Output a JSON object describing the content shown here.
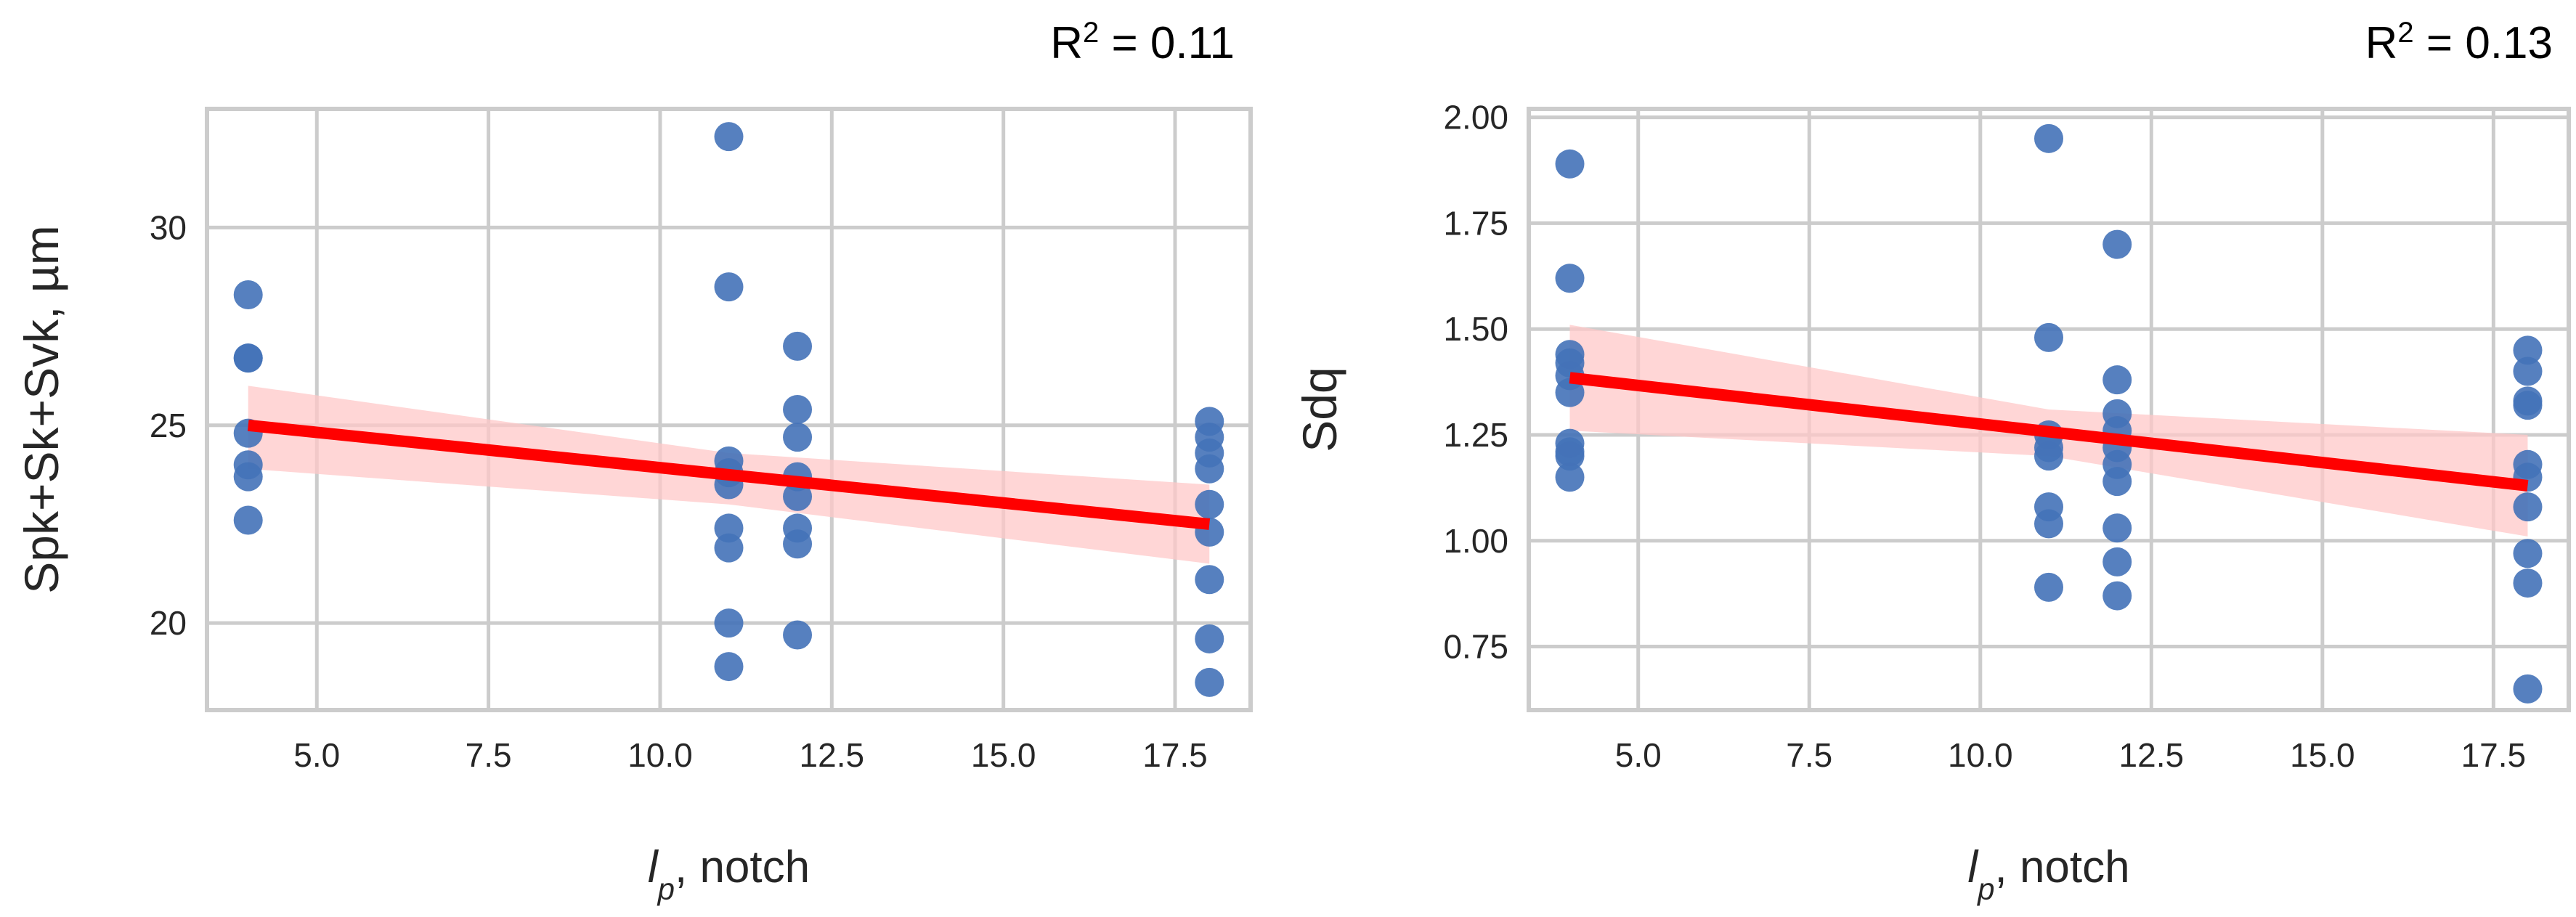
{
  "chart_data": [
    {
      "type": "scatter",
      "annotation": {
        "base": "R",
        "sup": "2",
        "rest": " = 0.11"
      },
      "xlabel": {
        "italic": "l",
        "sub": "p",
        "rest": ", notch"
      },
      "ylabel": "Spk+Sk+Svk, µm",
      "xlim": [
        3.4,
        18.6
      ],
      "ylim": [
        17.8,
        33.0
      ],
      "xticks": [
        5.0,
        7.5,
        10.0,
        12.5,
        15.0,
        17.5
      ],
      "xtick_labels": [
        "5.0",
        "7.5",
        "10.0",
        "12.5",
        "15.0",
        "17.5"
      ],
      "yticks": [
        20,
        25,
        30
      ],
      "ytick_labels": [
        "20",
        "25",
        "30"
      ],
      "grid": true,
      "colors": {
        "points": "#4472b8",
        "fit": "#ff0000",
        "band": "#ffc8c8"
      },
      "points": [
        [
          4,
          28.3
        ],
        [
          4,
          26.7
        ],
        [
          4,
          26.7
        ],
        [
          4,
          24.8
        ],
        [
          4,
          24.0
        ],
        [
          4,
          23.7
        ],
        [
          4,
          22.6
        ],
        [
          11,
          32.3
        ],
        [
          11,
          28.5
        ],
        [
          11,
          24.1
        ],
        [
          11,
          23.8
        ],
        [
          11,
          23.5
        ],
        [
          11,
          22.4
        ],
        [
          11,
          21.9
        ],
        [
          11,
          20.0
        ],
        [
          11,
          18.9
        ],
        [
          12,
          27.0
        ],
        [
          12,
          25.4
        ],
        [
          12,
          24.7
        ],
        [
          12,
          23.7
        ],
        [
          12,
          23.2
        ],
        [
          12,
          22.4
        ],
        [
          12,
          22.0
        ],
        [
          12,
          19.7
        ],
        [
          18,
          25.1
        ],
        [
          18,
          24.7
        ],
        [
          18,
          24.3
        ],
        [
          18,
          23.9
        ],
        [
          18,
          23.0
        ],
        [
          18,
          22.3
        ],
        [
          18,
          21.1
        ],
        [
          18,
          19.6
        ],
        [
          18,
          18.5
        ]
      ],
      "fit": {
        "x": [
          4,
          18
        ],
        "y": [
          25.0,
          22.5
        ]
      },
      "band": {
        "x": [
          4,
          11,
          18
        ],
        "upper": [
          26.0,
          24.3,
          23.5
        ],
        "lower": [
          23.9,
          23.0,
          21.5
        ]
      }
    },
    {
      "type": "scatter",
      "annotation": {
        "base": "R",
        "sup": "2",
        "rest": " = 0.13"
      },
      "xlabel": {
        "italic": "l",
        "sub": "p",
        "rest": ", notch"
      },
      "ylabel": "Sdq",
      "xlim": [
        3.4,
        18.6
      ],
      "ylim": [
        0.6,
        2.02
      ],
      "xticks": [
        5.0,
        7.5,
        10.0,
        12.5,
        15.0,
        17.5
      ],
      "xtick_labels": [
        "5.0",
        "7.5",
        "10.0",
        "12.5",
        "15.0",
        "17.5"
      ],
      "yticks": [
        0.75,
        1.0,
        1.25,
        1.5,
        1.75,
        2.0
      ],
      "ytick_labels": [
        "0.75",
        "1.00",
        "1.25",
        "1.50",
        "1.75",
        "2.00"
      ],
      "grid": true,
      "colors": {
        "points": "#4472b8",
        "fit": "#ff0000",
        "band": "#ffc8c8"
      },
      "points": [
        [
          4,
          1.89
        ],
        [
          4,
          1.62
        ],
        [
          4,
          1.44
        ],
        [
          4,
          1.42
        ],
        [
          4,
          1.39
        ],
        [
          4,
          1.35
        ],
        [
          4,
          1.23
        ],
        [
          4,
          1.21
        ],
        [
          4,
          1.2
        ],
        [
          4,
          1.15
        ],
        [
          11,
          1.95
        ],
        [
          11,
          1.48
        ],
        [
          11,
          1.25
        ],
        [
          11,
          1.22
        ],
        [
          11,
          1.2
        ],
        [
          11,
          1.08
        ],
        [
          11,
          1.04
        ],
        [
          11,
          0.89
        ],
        [
          12,
          1.7
        ],
        [
          12,
          1.38
        ],
        [
          12,
          1.3
        ],
        [
          12,
          1.26
        ],
        [
          12,
          1.22
        ],
        [
          12,
          1.18
        ],
        [
          12,
          1.14
        ],
        [
          12,
          1.03
        ],
        [
          12,
          0.95
        ],
        [
          12,
          0.87
        ],
        [
          18,
          1.45
        ],
        [
          18,
          1.4
        ],
        [
          18,
          1.33
        ],
        [
          18,
          1.32
        ],
        [
          18,
          1.18
        ],
        [
          18,
          1.15
        ],
        [
          18,
          1.08
        ],
        [
          18,
          0.97
        ],
        [
          18,
          0.9
        ],
        [
          18,
          0.65
        ]
      ],
      "fit": {
        "x": [
          4,
          18
        ],
        "y": [
          1.385,
          1.13
        ]
      },
      "band": {
        "x": [
          4,
          11,
          18
        ],
        "upper": [
          1.51,
          1.31,
          1.25
        ],
        "lower": [
          1.26,
          1.2,
          1.01
        ]
      }
    }
  ]
}
